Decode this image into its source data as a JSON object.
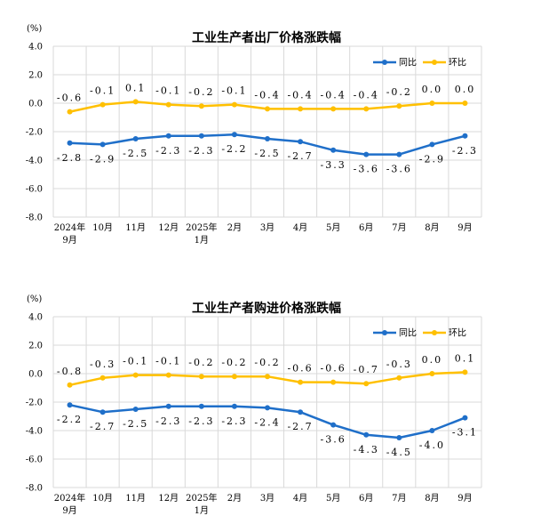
{
  "chart_data": [
    {
      "type": "line",
      "title": "工业生产者出厂价格涨跌幅",
      "unit": "(%)",
      "ylim": [
        -8.0,
        4.0
      ],
      "yticks": [
        "4.0",
        "2.0",
        "0.0",
        "-2.0",
        "-4.0",
        "-6.0",
        "-8.0"
      ],
      "categories": [
        [
          "2024年",
          "9月"
        ],
        [
          "10月"
        ],
        [
          "11月"
        ],
        [
          "12月"
        ],
        [
          "2025年",
          "1月"
        ],
        [
          "2月"
        ],
        [
          "3月"
        ],
        [
          "4月"
        ],
        [
          "5月"
        ],
        [
          "6月"
        ],
        [
          "7月"
        ],
        [
          "8月"
        ],
        [
          "9月"
        ]
      ],
      "legend_position": "top-right",
      "grid": true,
      "series": [
        {
          "name": "同比",
          "color": "#1f6fc9",
          "values": [
            -2.8,
            -2.9,
            -2.5,
            -2.3,
            -2.3,
            -2.2,
            -2.5,
            -2.7,
            -3.3,
            -3.6,
            -3.6,
            -2.9,
            -2.3
          ],
          "labels": [
            "-2.8",
            "-2.9",
            "-2.5",
            "-2.3",
            "-2.3",
            "-2.2",
            "-2.5",
            "-2.7",
            "-3.3",
            "-3.6",
            "-3.6",
            "-2.9",
            "-2.3"
          ]
        },
        {
          "name": "环比",
          "color": "#ffc000",
          "values": [
            -0.6,
            -0.1,
            0.1,
            -0.1,
            -0.2,
            -0.1,
            -0.4,
            -0.4,
            -0.4,
            -0.4,
            -0.2,
            0.0,
            0.0
          ],
          "labels": [
            "-0.6",
            "-0.1",
            "0.1",
            "-0.1",
            "-0.2",
            "-0.1",
            "-0.4",
            "-0.4",
            "-0.4",
            "-0.4",
            "-0.2",
            "0.0",
            "0.0"
          ]
        }
      ]
    },
    {
      "type": "line",
      "title": "工业生产者购进价格涨跌幅",
      "unit": "(%)",
      "ylim": [
        -8.0,
        4.0
      ],
      "yticks": [
        "4.0",
        "2.0",
        "0.0",
        "-2.0",
        "-4.0",
        "-6.0",
        "-8.0"
      ],
      "categories": [
        [
          "2024年",
          "9月"
        ],
        [
          "10月"
        ],
        [
          "11月"
        ],
        [
          "12月"
        ],
        [
          "2025年",
          "1月"
        ],
        [
          "2月"
        ],
        [
          "3月"
        ],
        [
          "4月"
        ],
        [
          "5月"
        ],
        [
          "6月"
        ],
        [
          "7月"
        ],
        [
          "8月"
        ],
        [
          "9月"
        ]
      ],
      "legend_position": "top-right",
      "grid": true,
      "series": [
        {
          "name": "同比",
          "color": "#1f6fc9",
          "values": [
            -2.2,
            -2.7,
            -2.5,
            -2.3,
            -2.3,
            -2.3,
            -2.4,
            -2.7,
            -3.6,
            -4.3,
            -4.5,
            -4.0,
            -3.1
          ],
          "labels": [
            "-2.2",
            "-2.7",
            "-2.5",
            "-2.3",
            "-2.3",
            "-2.3",
            "-2.4",
            "-2.7",
            "-3.6",
            "-4.3",
            "-4.5",
            "-4.0",
            "-3.1"
          ]
        },
        {
          "name": "环比",
          "color": "#ffc000",
          "values": [
            -0.8,
            -0.3,
            -0.1,
            -0.1,
            -0.2,
            -0.2,
            -0.2,
            -0.6,
            -0.6,
            -0.7,
            -0.3,
            0.0,
            0.1
          ],
          "labels": [
            "-0.8",
            "-0.3",
            "-0.1",
            "-0.1",
            "-0.2",
            "-0.2",
            "-0.2",
            "-0.6",
            "-0.6",
            "-0.7",
            "-0.3",
            "0.0",
            "0.1"
          ]
        }
      ]
    }
  ]
}
